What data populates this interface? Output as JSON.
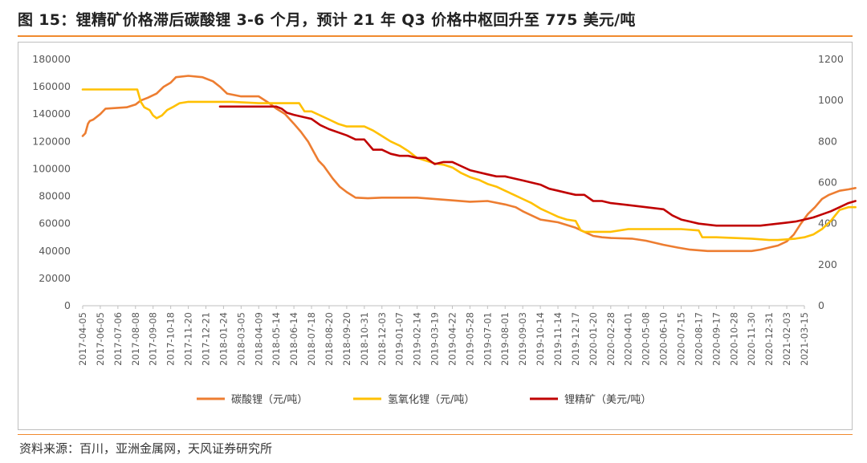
{
  "header": {
    "title": "图 15：锂精矿价格滞后碳酸锂 3-6 个月，预计 21 年 Q3 价格中枢回升至 775 美元/吨"
  },
  "footer": {
    "source": "资料来源：百川，亚洲金属网，天风证券研究所"
  },
  "colors": {
    "accent": "#f08a2e",
    "lithium_carbonate": "#ed7d31",
    "lithium_hydroxide": "#ffc000",
    "spodumene": "#c00000"
  },
  "chart_data": {
    "type": "line",
    "x_ticks": [
      "2017-04-05",
      "2017-06-05",
      "2017-07-06",
      "2017-08-08",
      "2017-09-08",
      "2017-10-18",
      "2017-11-20",
      "2017-12-21",
      "2018-01-24",
      "2018-03-05",
      "2018-04-09",
      "2018-05-14",
      "2018-06-14",
      "2018-07-18",
      "2018-08-20",
      "2018-09-20",
      "2018-10-31",
      "2018-12-03",
      "2019-01-07",
      "2019-02-14",
      "2019-03-19",
      "2019-04-22",
      "2019-05-28",
      "2019-07-01",
      "2019-08-01",
      "2019-09-03",
      "2019-10-14",
      "2019-11-14",
      "2019-12-17",
      "2020-01-20",
      "2020-02-28",
      "2020-04-01",
      "2020-05-08",
      "2020-06-10",
      "2020-07-15",
      "2020-08-17",
      "2020-09-17",
      "2020-10-28",
      "2020-11-30",
      "2020-12-31",
      "2021-02-03",
      "2021-03-15"
    ],
    "y_left": {
      "ticks": [
        "0",
        "20000",
        "40000",
        "60000",
        "80000",
        "100000",
        "120000",
        "140000",
        "160000",
        "180000"
      ],
      "range": [
        0,
        180000
      ]
    },
    "y_right": {
      "ticks": [
        "0",
        "200",
        "400",
        "600",
        "800",
        "1000",
        "1200"
      ],
      "range": [
        0,
        1200
      ]
    },
    "series": [
      {
        "name": "碳酸锂（元/吨）",
        "axis": "left",
        "color": "#ed7d31",
        "points": [
          [
            0,
            124000
          ],
          [
            0.15,
            126000
          ],
          [
            0.3,
            133000
          ],
          [
            0.4,
            135000
          ],
          [
            0.6,
            136000
          ],
          [
            1,
            140000
          ],
          [
            1.3,
            144000
          ],
          [
            2.5,
            145000
          ],
          [
            3,
            147000
          ],
          [
            3.3,
            150000
          ],
          [
            3.7,
            152000
          ],
          [
            4.2,
            155000
          ],
          [
            4.6,
            160000
          ],
          [
            5,
            163000
          ],
          [
            5.3,
            167000
          ],
          [
            6,
            168000
          ],
          [
            6.8,
            167000
          ],
          [
            7.4,
            164000
          ],
          [
            7.8,
            160000
          ],
          [
            8.2,
            155000
          ],
          [
            9,
            153000
          ],
          [
            10,
            153000
          ],
          [
            10.6,
            148000
          ],
          [
            11,
            144000
          ],
          [
            11.5,
            140000
          ],
          [
            12,
            133000
          ],
          [
            12.4,
            127000
          ],
          [
            12.8,
            120000
          ],
          [
            13.1,
            113000
          ],
          [
            13.4,
            106000
          ],
          [
            13.7,
            102000
          ],
          [
            14.2,
            93000
          ],
          [
            14.6,
            87000
          ],
          [
            15,
            83000
          ],
          [
            15.5,
            79000
          ],
          [
            16.2,
            78500
          ],
          [
            17,
            79000
          ],
          [
            19,
            79000
          ],
          [
            21,
            77000
          ],
          [
            22,
            76000
          ],
          [
            23,
            76500
          ],
          [
            24,
            74000
          ],
          [
            24.6,
            72000
          ],
          [
            25,
            69000
          ],
          [
            25.5,
            66000
          ],
          [
            26,
            63000
          ],
          [
            26.5,
            62000
          ],
          [
            27,
            61000
          ],
          [
            27.5,
            59000
          ],
          [
            28,
            57000
          ],
          [
            28.5,
            54000
          ],
          [
            29,
            51000
          ],
          [
            29.5,
            50000
          ],
          [
            30,
            49500
          ],
          [
            31.2,
            49000
          ],
          [
            32,
            47500
          ],
          [
            33,
            44500
          ],
          [
            33.8,
            42500
          ],
          [
            34.5,
            41000
          ],
          [
            35.5,
            40000
          ],
          [
            36,
            40000
          ],
          [
            37,
            40000
          ],
          [
            38,
            40000
          ],
          [
            38.5,
            41000
          ],
          [
            39,
            42500
          ],
          [
            39.5,
            44000
          ],
          [
            40,
            47000
          ],
          [
            40.4,
            52000
          ],
          [
            40.8,
            60000
          ],
          [
            41.2,
            67000
          ],
          [
            41.6,
            72000
          ],
          [
            42,
            78000
          ],
          [
            42.4,
            81000
          ],
          [
            43,
            84000
          ],
          [
            43.5,
            85000
          ],
          [
            43.9,
            86000
          ]
        ]
      },
      {
        "name": "氢氧化锂（元/吨）",
        "axis": "left",
        "color": "#ffc000",
        "points": [
          [
            0,
            158000
          ],
          [
            3.1,
            158000
          ],
          [
            3.3,
            149000
          ],
          [
            3.5,
            145000
          ],
          [
            3.8,
            143000
          ],
          [
            4,
            139000
          ],
          [
            4.2,
            137000
          ],
          [
            4.5,
            139000
          ],
          [
            4.8,
            143000
          ],
          [
            5.1,
            145000
          ],
          [
            5.5,
            148000
          ],
          [
            6,
            149000
          ],
          [
            7,
            149000
          ],
          [
            8.5,
            149000
          ],
          [
            10,
            148000
          ],
          [
            11,
            148000
          ],
          [
            12.3,
            148000
          ],
          [
            12.6,
            142000
          ],
          [
            13,
            142000
          ],
          [
            14,
            136000
          ],
          [
            14.5,
            133000
          ],
          [
            15,
            131000
          ],
          [
            16,
            131000
          ],
          [
            16.5,
            128000
          ],
          [
            17,
            124000
          ],
          [
            17.5,
            120000
          ],
          [
            18,
            117000
          ],
          [
            18.5,
            113000
          ],
          [
            19,
            108000
          ],
          [
            19.5,
            106000
          ],
          [
            20,
            104000
          ],
          [
            20.5,
            103000
          ],
          [
            21,
            101000
          ],
          [
            21.5,
            97000
          ],
          [
            22,
            94000
          ],
          [
            22.5,
            92000
          ],
          [
            23,
            89000
          ],
          [
            23.5,
            87000
          ],
          [
            24,
            84000
          ],
          [
            24.5,
            81000
          ],
          [
            25,
            78000
          ],
          [
            25.5,
            75000
          ],
          [
            26,
            71000
          ],
          [
            26.5,
            68000
          ],
          [
            27,
            65000
          ],
          [
            27.5,
            63000
          ],
          [
            28,
            62000
          ],
          [
            28.3,
            55000
          ],
          [
            28.5,
            54000
          ],
          [
            29,
            54000
          ],
          [
            30,
            54000
          ],
          [
            31,
            56000
          ],
          [
            33,
            56000
          ],
          [
            34,
            56000
          ],
          [
            35,
            55000
          ],
          [
            35.2,
            50000
          ],
          [
            36,
            50000
          ],
          [
            38,
            49000
          ],
          [
            39,
            48000
          ],
          [
            39.5,
            48000
          ],
          [
            40,
            48500
          ],
          [
            40.5,
            49000
          ],
          [
            41,
            50000
          ],
          [
            41.5,
            52000
          ],
          [
            42,
            56000
          ],
          [
            42.5,
            62000
          ],
          [
            43,
            70000
          ],
          [
            43.5,
            72000
          ],
          [
            43.9,
            72000
          ]
        ]
      },
      {
        "name": "锂精矿（美元/吨）",
        "axis": "right",
        "color": "#c00000",
        "points": [
          [
            7.8,
            970
          ],
          [
            9,
            970
          ],
          [
            10,
            970
          ],
          [
            11,
            970
          ],
          [
            11.3,
            960
          ],
          [
            11.6,
            940
          ],
          [
            12,
            930
          ],
          [
            13,
            910
          ],
          [
            13.5,
            880
          ],
          [
            14,
            860
          ],
          [
            15,
            830
          ],
          [
            15.5,
            810
          ],
          [
            16,
            810
          ],
          [
            16.5,
            760
          ],
          [
            17,
            760
          ],
          [
            17.5,
            740
          ],
          [
            18,
            730
          ],
          [
            18.5,
            730
          ],
          [
            19,
            720
          ],
          [
            19.5,
            720
          ],
          [
            20,
            690
          ],
          [
            20.5,
            700
          ],
          [
            21,
            700
          ],
          [
            21.5,
            680
          ],
          [
            22,
            660
          ],
          [
            23,
            640
          ],
          [
            23.5,
            630
          ],
          [
            24,
            630
          ],
          [
            24.5,
            620
          ],
          [
            25,
            610
          ],
          [
            25.5,
            600
          ],
          [
            26,
            590
          ],
          [
            26.5,
            570
          ],
          [
            27,
            560
          ],
          [
            27.5,
            550
          ],
          [
            28,
            540
          ],
          [
            28.5,
            540
          ],
          [
            29,
            510
          ],
          [
            29.5,
            510
          ],
          [
            30,
            500
          ],
          [
            31,
            490
          ],
          [
            32,
            480
          ],
          [
            33,
            470
          ],
          [
            33.5,
            440
          ],
          [
            34,
            420
          ],
          [
            34.5,
            410
          ],
          [
            35,
            400
          ],
          [
            35.5,
            395
          ],
          [
            36,
            390
          ],
          [
            37,
            390
          ],
          [
            38,
            390
          ],
          [
            38.5,
            390
          ],
          [
            39,
            395
          ],
          [
            39.5,
            400
          ],
          [
            40,
            405
          ],
          [
            40.5,
            410
          ],
          [
            41,
            420
          ],
          [
            41.5,
            430
          ],
          [
            42,
            445
          ],
          [
            42.5,
            460
          ],
          [
            43,
            480
          ],
          [
            43.5,
            500
          ],
          [
            43.9,
            510
          ]
        ]
      }
    ]
  }
}
